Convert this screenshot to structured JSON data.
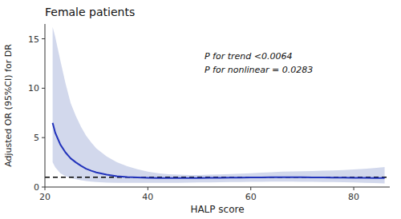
{
  "chart_data": {
    "type": "line",
    "title": "Female patients",
    "x_label": "HALP score",
    "y_label": "Adjusted OR (95%CI) for DR",
    "xlim": [
      20,
      87
    ],
    "ylim": [
      0,
      16.5
    ],
    "xticks": [
      20,
      40,
      60,
      80
    ],
    "yticks": [
      0,
      5,
      10,
      15
    ],
    "grid": false,
    "reference_line": 1.0,
    "annotations": [
      {
        "text": "P for trend <0.0064\nP for nonlinear = 0.0283",
        "x": 51,
        "y": 13.8
      }
    ],
    "x": [
      21.5,
      22,
      23,
      24,
      25,
      26,
      27,
      28,
      29,
      30,
      32,
      34,
      36,
      38,
      40,
      42,
      44,
      46,
      48,
      50,
      52,
      54,
      56,
      58,
      60,
      62,
      64,
      66,
      68,
      70,
      72,
      74,
      76,
      78,
      80,
      82,
      84,
      86
    ],
    "series": [
      {
        "type": "line",
        "color": "#2233bb",
        "values": [
          6.5,
          5.5,
          4.3,
          3.5,
          2.9,
          2.5,
          2.15,
          1.85,
          1.65,
          1.48,
          1.25,
          1.1,
          1.02,
          0.97,
          0.93,
          0.91,
          0.9,
          0.9,
          0.91,
          0.92,
          0.93,
          0.94,
          0.95,
          0.96,
          0.97,
          0.98,
          0.99,
          0.99,
          0.99,
          0.99,
          0.98,
          0.97,
          0.96,
          0.95,
          0.94,
          0.93,
          0.91,
          0.9
        ]
      },
      {
        "type": "band",
        "color": "#8899cc",
        "lower": [
          2.5,
          2.0,
          1.4,
          1.1,
          0.9,
          0.78,
          0.68,
          0.6,
          0.54,
          0.5,
          0.44,
          0.42,
          0.42,
          0.42,
          0.42,
          0.42,
          0.42,
          0.43,
          0.44,
          0.46,
          0.47,
          0.49,
          0.5,
          0.51,
          0.52,
          0.53,
          0.54,
          0.54,
          0.54,
          0.53,
          0.52,
          0.51,
          0.5,
          0.48,
          0.46,
          0.43,
          0.4,
          0.37
        ],
        "upper": [
          16.2,
          15.2,
          12.8,
          10.5,
          8.5,
          7.2,
          6.1,
          5.2,
          4.5,
          3.9,
          3.1,
          2.5,
          2.1,
          1.8,
          1.55,
          1.4,
          1.3,
          1.25,
          1.22,
          1.22,
          1.25,
          1.28,
          1.32,
          1.35,
          1.4,
          1.45,
          1.5,
          1.55,
          1.58,
          1.6,
          1.62,
          1.65,
          1.68,
          1.72,
          1.78,
          1.85,
          1.93,
          2.02
        ]
      }
    ]
  }
}
